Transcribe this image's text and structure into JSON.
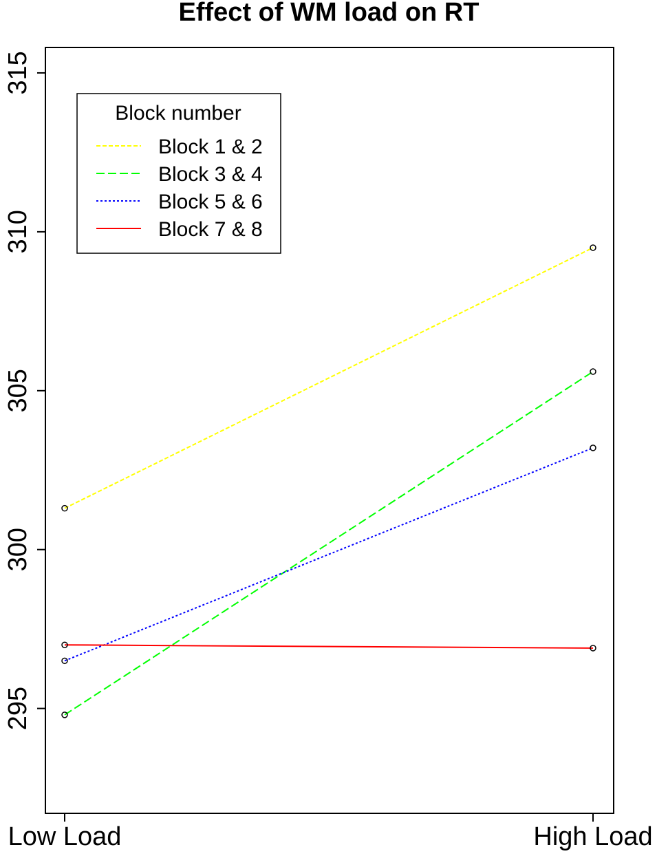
{
  "chart_data": {
    "type": "line",
    "title": "Effect of WM load on RT",
    "xlabel": "",
    "ylabel": "",
    "categories": [
      "Low Load",
      "High Load"
    ],
    "ylim": [
      291.7,
      315.8
    ],
    "yticks": [
      295,
      300,
      305,
      310,
      315
    ],
    "series": [
      {
        "name": "Block 1 & 2",
        "values": [
          301.3,
          309.5
        ],
        "color": "#ffff00",
        "dash": "6,3"
      },
      {
        "name": "Block 3 & 4",
        "values": [
          294.8,
          305.6
        ],
        "color": "#00ff00",
        "dash": "12,5"
      },
      {
        "name": "Block 5 & 6",
        "values": [
          296.5,
          303.2
        ],
        "color": "#0000ff",
        "dash": "3,3"
      },
      {
        "name": "Block 7 & 8",
        "values": [
          297.0,
          296.9
        ],
        "color": "#ff0000",
        "dash": ""
      }
    ],
    "legend": {
      "title": "Block number",
      "position": "top-left"
    },
    "grid": false
  }
}
